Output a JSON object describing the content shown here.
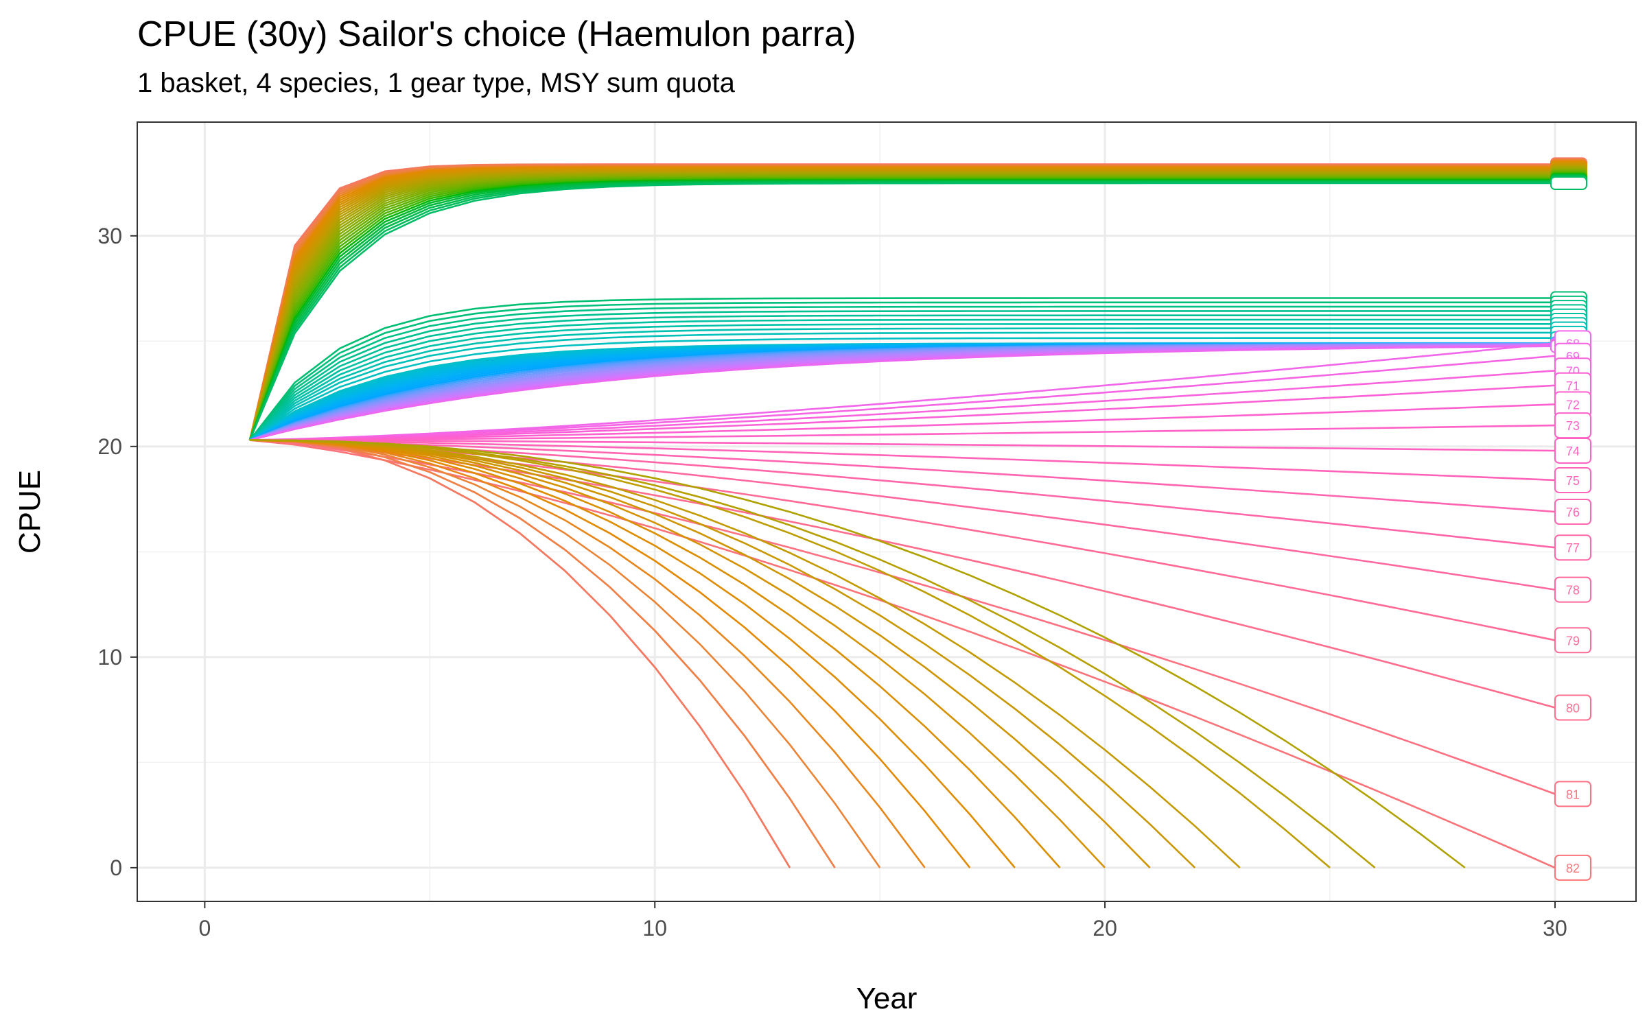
{
  "chart_data": {
    "type": "line",
    "title": "CPUE (30y) Sailor's choice (Haemulon parra)",
    "subtitle": "1 basket, 4 species, 1 gear type, MSY sum quota",
    "xlabel": "Year",
    "ylabel": "CPUE",
    "xlim": [
      -1.5,
      31.8
    ],
    "ylim": [
      -1.6,
      35.4
    ],
    "x_ticks": [
      "0",
      "10",
      "20",
      "30"
    ],
    "y_ticks": [
      "0",
      "10",
      "20",
      "30"
    ],
    "grid": true,
    "legend": "none",
    "start": {
      "year": 1,
      "cpue": 20.3
    },
    "series_count": 82,
    "collapse_years": [
      13,
      13,
      14,
      14,
      15,
      16,
      17,
      18,
      19,
      20,
      21,
      22,
      23,
      25,
      26,
      28
    ],
    "end_labels": [
      {
        "name": "68",
        "year": 30,
        "cpue": 24.9
      },
      {
        "name": "69",
        "year": 30,
        "cpue": 24.3
      },
      {
        "name": "70",
        "year": 30,
        "cpue": 23.6
      },
      {
        "name": "71",
        "year": 30,
        "cpue": 22.9
      },
      {
        "name": "72",
        "year": 30,
        "cpue": 22.0
      },
      {
        "name": "73",
        "year": 30,
        "cpue": 21.0
      },
      {
        "name": "74",
        "year": 30,
        "cpue": 19.8
      },
      {
        "name": "75",
        "year": 30,
        "cpue": 18.4
      },
      {
        "name": "76",
        "year": 30,
        "cpue": 16.9
      },
      {
        "name": "77",
        "year": 30,
        "cpue": 15.2
      },
      {
        "name": "78",
        "year": 30,
        "cpue": 13.2
      },
      {
        "name": "79",
        "year": 30,
        "cpue": 10.8
      },
      {
        "name": "80",
        "year": 30,
        "cpue": 7.6
      },
      {
        "name": "81",
        "year": 30,
        "cpue": 3.5
      },
      {
        "name": "82",
        "year": 30,
        "cpue": 0.0
      }
    ]
  }
}
